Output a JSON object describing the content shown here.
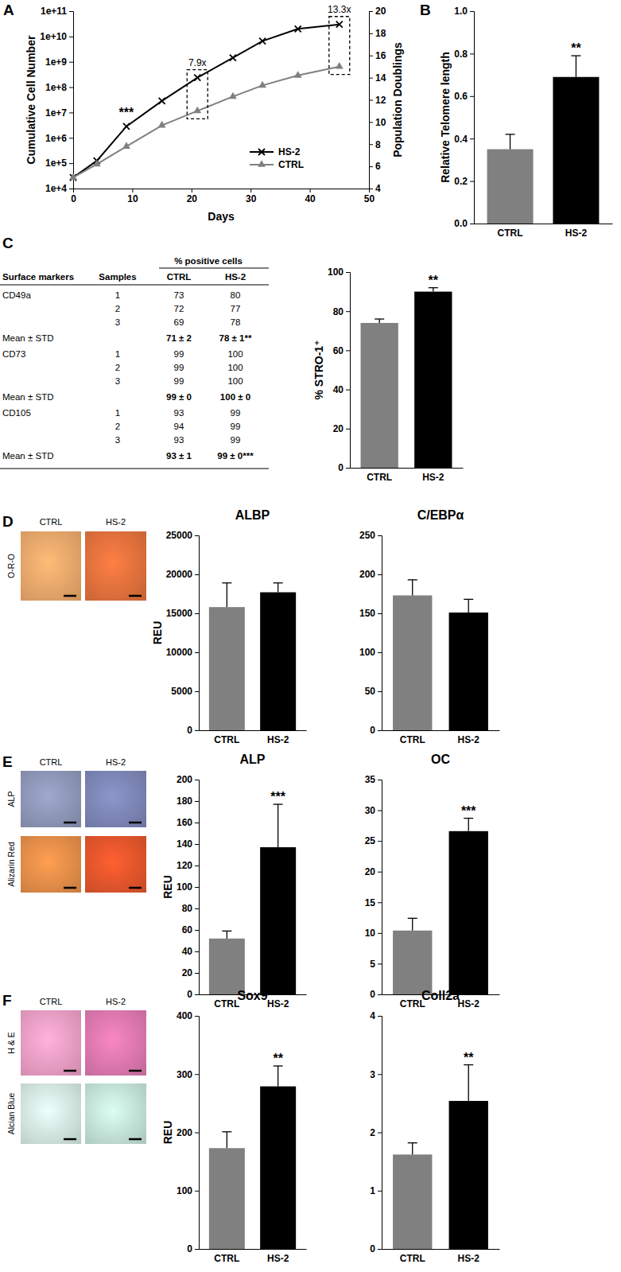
{
  "chart_data": [
    {
      "type": "line",
      "panel_label": "A",
      "x_label": "Days",
      "y_label": "Cumulative Cell Number",
      "y2_label": "Population Doublings",
      "x": [
        0,
        4,
        9,
        15,
        21,
        27,
        32,
        38,
        45
      ],
      "xlim": [
        0,
        50
      ],
      "xticks": [
        0,
        10,
        20,
        30,
        40,
        50
      ],
      "log": "y",
      "ylim": [
        10000,
        100000000000
      ],
      "yticks": [
        {
          "value": 10000,
          "label": "1e+4"
        },
        {
          "value": 100000,
          "label": "1e+5"
        },
        {
          "value": 1000000,
          "label": "1e+6"
        },
        {
          "value": 10000000,
          "label": "1e+7"
        },
        {
          "value": 100000000,
          "label": "1e+8"
        },
        {
          "value": 1000000000,
          "label": "1e+9"
        },
        {
          "value": 10000000000,
          "label": "1e+10"
        },
        {
          "value": 100000000000,
          "label": "1e+11"
        }
      ],
      "y2lim": [
        4,
        20
      ],
      "y2ticks": [
        4,
        6,
        8,
        10,
        12,
        14,
        16,
        18,
        20
      ],
      "series": [
        {
          "name": "HS-2",
          "color": "#000000",
          "marker": "x",
          "axis": "y2",
          "values": [
            5.0,
            6.5,
            9.6,
            11.9,
            14.0,
            15.8,
            17.3,
            18.4,
            18.8
          ]
        },
        {
          "name": "CTRL",
          "color": "#808080",
          "marker": "triangle",
          "axis": "y2",
          "values": [
            5.0,
            6.2,
            7.8,
            9.7,
            11.0,
            12.3,
            13.3,
            14.2,
            15.0
          ]
        }
      ],
      "legend": "lower right",
      "grid": false,
      "annotations": [
        {
          "text": "***",
          "x": 9
        }
      ],
      "fold_changes": [
        {
          "text": "7.9x",
          "x": 21
        },
        {
          "text": "13.3x",
          "x": 45
        }
      ]
    },
    {
      "type": "bar",
      "panel_label": "B",
      "y_label": "Relative Telomere length",
      "categories": [
        "CTRL",
        "HS-2"
      ],
      "values": [
        0.35,
        0.69
      ],
      "errors": [
        0.07,
        0.1
      ],
      "colors": [
        "#808080",
        "#000000"
      ],
      "ylim": [
        0,
        1
      ],
      "yticks": [
        {
          "value": 0,
          "label": "0.0"
        },
        0.2,
        0.4,
        0.6,
        0.8,
        {
          "value": 1,
          "label": "1.0"
        }
      ],
      "grid": false,
      "annotations": [
        {
          "text": "**",
          "category": "HS-2"
        }
      ]
    },
    {
      "type": "bar",
      "y_label": "% STRO-1⁺",
      "categories": [
        "CTRL",
        "HS-2"
      ],
      "values": [
        74,
        90
      ],
      "errors": [
        2,
        2
      ],
      "colors": [
        "#808080",
        "#000000"
      ],
      "ylim": [
        0,
        100
      ],
      "yticks": [
        0,
        20,
        40,
        60,
        80,
        100
      ],
      "grid": false,
      "annotations": [
        {
          "text": "**",
          "category": "HS-2"
        }
      ]
    },
    {
      "type": "bar",
      "title": "ALBP",
      "y_label": "REU",
      "categories": [
        "CTRL",
        "HS-2"
      ],
      "values": [
        15800,
        17700
      ],
      "errors": [
        3100,
        1200
      ],
      "colors": [
        "#808080",
        "#000000"
      ],
      "ylim": [
        0,
        25000
      ],
      "yticks": [
        0,
        5000,
        10000,
        15000,
        20000,
        25000
      ],
      "grid": false
    },
    {
      "type": "bar",
      "title": "C/EBPα",
      "categories": [
        "CTRL",
        "HS-2"
      ],
      "values": [
        173,
        151
      ],
      "errors": [
        20,
        17
      ],
      "colors": [
        "#808080",
        "#000000"
      ],
      "ylim": [
        0,
        250
      ],
      "yticks": [
        0,
        50,
        100,
        150,
        200,
        250
      ],
      "grid": false
    },
    {
      "type": "bar",
      "title": "ALP",
      "y_label": "REU",
      "categories": [
        "CTRL",
        "HS-2"
      ],
      "values": [
        52,
        137
      ],
      "errors": [
        7,
        40
      ],
      "colors": [
        "#808080",
        "#000000"
      ],
      "ylim": [
        0,
        200
      ],
      "yticks": [
        0,
        20,
        40,
        60,
        80,
        100,
        120,
        140,
        160,
        180,
        200
      ],
      "grid": false,
      "annotations": [
        {
          "text": "***",
          "category": "HS-2"
        }
      ]
    },
    {
      "type": "bar",
      "title": "OC",
      "categories": [
        "CTRL",
        "HS-2"
      ],
      "values": [
        10.4,
        26.6
      ],
      "errors": [
        2.0,
        2.1
      ],
      "colors": [
        "#808080",
        "#000000"
      ],
      "ylim": [
        0,
        35
      ],
      "yticks": [
        0,
        5,
        10,
        15,
        20,
        25,
        30,
        35
      ],
      "grid": false,
      "annotations": [
        {
          "text": "***",
          "category": "HS-2"
        }
      ]
    },
    {
      "type": "bar",
      "title": "Sox9",
      "y_label": "REU",
      "categories": [
        "CTRL",
        "HS-2"
      ],
      "values": [
        173,
        279
      ],
      "errors": [
        28,
        35
      ],
      "colors": [
        "#808080",
        "#000000"
      ],
      "ylim": [
        0,
        400
      ],
      "yticks": [
        0,
        100,
        200,
        300,
        400
      ],
      "grid": false,
      "annotations": [
        {
          "text": "**",
          "category": "HS-2"
        }
      ]
    },
    {
      "type": "bar",
      "title": "Coll2a",
      "categories": [
        "CTRL",
        "HS-2"
      ],
      "values": [
        1.62,
        2.54
      ],
      "errors": [
        0.2,
        0.62
      ],
      "colors": [
        "#808080",
        "#000000"
      ],
      "ylim": [
        0,
        4
      ],
      "yticks": [
        0,
        1,
        2,
        3,
        4
      ],
      "grid": false,
      "annotations": [
        {
          "text": "**",
          "category": "HS-2"
        }
      ]
    }
  ],
  "table": {
    "panel_label": "C",
    "group_header": "% positive cells",
    "columns": [
      "Surface markers",
      "Samples",
      "CTRL",
      "HS-2"
    ],
    "rows": [
      [
        "CD49a",
        "1",
        "73",
        "80"
      ],
      [
        null,
        "2",
        "72",
        "77"
      ],
      [
        null,
        "3",
        "69",
        "78"
      ],
      [
        "Mean ± STD",
        null,
        "71 ± 2",
        "78 ± 1**"
      ],
      [
        "CD73",
        "1",
        "99",
        "100"
      ],
      [
        null,
        "2",
        "99",
        "100"
      ],
      [
        null,
        "3",
        "99",
        "100"
      ],
      [
        "Mean ± STD",
        null,
        "99 ± 0",
        "100 ± 0"
      ],
      [
        "CD105",
        "1",
        "93",
        "99"
      ],
      [
        null,
        "2",
        "94",
        "99"
      ],
      [
        null,
        "3",
        "93",
        "99"
      ],
      [
        "Mean ± STD",
        null,
        "93 ± 1",
        "99 ± 0***"
      ]
    ]
  },
  "stain_panels": [
    {
      "panel_label": "D",
      "columns": [
        "CTRL",
        "HS-2"
      ],
      "rows": [
        "O-R-O"
      ]
    },
    {
      "panel_label": "E",
      "columns": [
        "CTRL",
        "HS-2"
      ],
      "rows": [
        "ALP",
        "Alizarin Red"
      ]
    },
    {
      "panel_label": "F",
      "columns": [
        "CTRL",
        "HS-2"
      ],
      "rows": [
        "H & E",
        "Alcian Blue"
      ]
    }
  ]
}
